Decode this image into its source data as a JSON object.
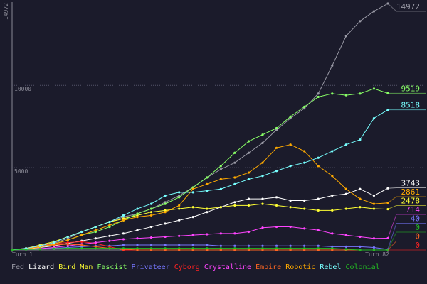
{
  "chart_data": {
    "type": "line",
    "x": [
      1,
      4,
      7,
      10,
      13,
      16,
      19,
      22,
      25,
      28,
      31,
      34,
      37,
      40,
      43,
      46,
      49,
      52,
      55,
      58,
      61,
      64,
      67,
      70,
      73,
      76,
      79,
      82
    ],
    "xticks": [
      {
        "value": 1,
        "label": "Turn 1"
      },
      {
        "value": 82,
        "label": "Turn 82"
      }
    ],
    "xlim": [
      1,
      82
    ],
    "ylim": [
      0,
      14972
    ],
    "yticks": [
      5000,
      10000
    ],
    "grid": true,
    "series": [
      {
        "name": "Fed",
        "color": "#9a9aa6",
        "values": [
          0,
          100,
          250,
          400,
          700,
          1100,
          1400,
          1700,
          2000,
          2200,
          2500,
          2900,
          3300,
          3800,
          4400,
          4900,
          5300,
          5900,
          6500,
          7300,
          8000,
          8600,
          9500,
          11200,
          13000,
          13900,
          14500,
          14972
        ]
      },
      {
        "name": "Lizard",
        "color": "#ffffff",
        "values": [
          0,
          50,
          150,
          250,
          400,
          550,
          700,
          850,
          1000,
          1200,
          1400,
          1600,
          1800,
          2000,
          2300,
          2600,
          2900,
          3100,
          3100,
          3200,
          3000,
          3000,
          3100,
          3300,
          3400,
          3700,
          3300,
          3743
        ]
      },
      {
        "name": "Bird Man",
        "color": "#ffff33",
        "values": [
          0,
          100,
          300,
          500,
          800,
          1100,
          1400,
          1700,
          1900,
          2100,
          2300,
          2400,
          2500,
          2600,
          2500,
          2600,
          2700,
          2700,
          2800,
          2700,
          2600,
          2500,
          2400,
          2400,
          2500,
          2600,
          2500,
          2478
        ]
      },
      {
        "name": "Fascist",
        "color": "#88ff66",
        "values": [
          0,
          80,
          200,
          350,
          600,
          900,
          1100,
          1400,
          1800,
          2200,
          2500,
          2800,
          3200,
          3800,
          4400,
          5100,
          5900,
          6600,
          7000,
          7400,
          8100,
          8700,
          9300,
          9500,
          9400,
          9500,
          9800,
          9519
        ]
      },
      {
        "name": "Privateer",
        "color": "#7777ff",
        "values": [
          0,
          30,
          60,
          100,
          150,
          200,
          250,
          250,
          300,
          300,
          300,
          300,
          300,
          300,
          300,
          250,
          250,
          250,
          250,
          250,
          250,
          250,
          250,
          200,
          200,
          200,
          150,
          40
        ]
      },
      {
        "name": "Cyborg",
        "color": "#ff2222",
        "values": [
          0,
          100,
          250,
          400,
          450,
          500,
          400,
          200,
          0,
          0,
          0,
          0,
          0,
          0,
          0,
          0,
          0,
          0,
          0,
          0,
          0,
          0,
          0,
          0,
          0,
          0,
          0,
          0
        ]
      },
      {
        "name": "Crystalline",
        "color": "#ff44ff",
        "values": [
          0,
          30,
          80,
          150,
          250,
          350,
          450,
          550,
          650,
          700,
          750,
          800,
          850,
          900,
          950,
          1000,
          1000,
          1100,
          1350,
          1400,
          1400,
          1300,
          1200,
          1000,
          900,
          800,
          700,
          714
        ]
      },
      {
        "name": "Empire",
        "color": "#ff6622",
        "values": [
          0,
          80,
          200,
          300,
          350,
          300,
          200,
          100,
          50,
          0,
          0,
          0,
          0,
          0,
          0,
          0,
          0,
          0,
          0,
          0,
          0,
          0,
          0,
          0,
          0,
          0,
          0,
          0
        ]
      },
      {
        "name": "Robotic",
        "color": "#ffaa00",
        "values": [
          0,
          60,
          180,
          350,
          600,
          900,
          1200,
          1500,
          1800,
          2000,
          2100,
          2300,
          2700,
          3700,
          4000,
          4300,
          4400,
          4700,
          5300,
          6200,
          6400,
          6000,
          5100,
          4500,
          3700,
          3100,
          2800,
          2861
        ]
      },
      {
        "name": "Rebel",
        "color": "#77ffff",
        "values": [
          0,
          100,
          250,
          450,
          800,
          1100,
          1400,
          1700,
          2100,
          2500,
          2800,
          3300,
          3500,
          3500,
          3600,
          3700,
          4000,
          4300,
          4500,
          4800,
          5100,
          5300,
          5600,
          6000,
          6400,
          6700,
          8000,
          8518
        ]
      },
      {
        "name": "Colonial",
        "color": "#22bb22",
        "values": [
          0,
          30,
          50,
          80,
          100,
          100,
          100,
          100,
          100,
          100,
          100,
          100,
          100,
          100,
          100,
          100,
          100,
          100,
          100,
          100,
          100,
          100,
          100,
          100,
          50,
          0,
          0,
          0
        ]
      }
    ]
  }
}
